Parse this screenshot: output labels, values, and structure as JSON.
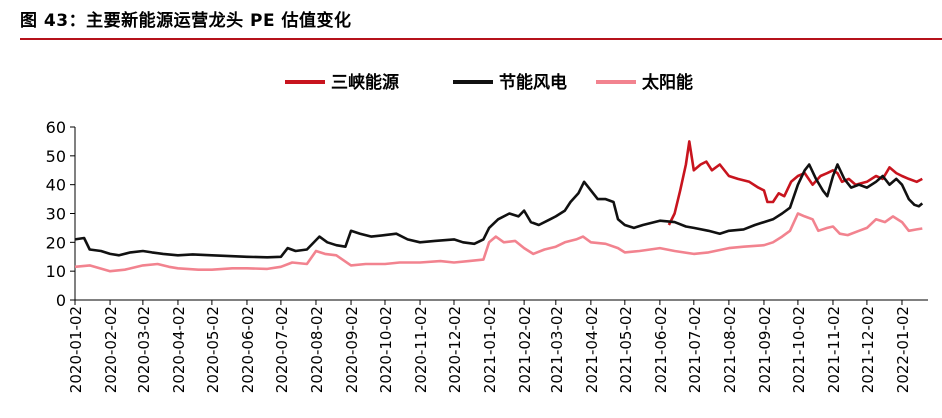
{
  "figure_title": "图 43：主要新能源运营龙头 PE 估值变化",
  "colors": {
    "rule": "#b5121b"
  },
  "chart_data": {
    "type": "line",
    "title": "图 43：主要新能源运营龙头 PE 估值变化",
    "xlabel": "",
    "ylabel": "",
    "ylim": [
      0,
      60
    ],
    "yticks": [
      0,
      10,
      20,
      30,
      40,
      50,
      60
    ],
    "grid": false,
    "legend": "top-center",
    "xticks": [
      "2020-01-02",
      "2020-02-02",
      "2020-03-02",
      "2020-04-02",
      "2020-05-02",
      "2020-06-02",
      "2020-07-02",
      "2020-08-02",
      "2020-09-02",
      "2020-10-02",
      "2020-11-02",
      "2020-12-02",
      "2021-01-02",
      "2021-02-02",
      "2021-03-02",
      "2021-04-02",
      "2021-05-02",
      "2021-06-02",
      "2021-07-02",
      "2021-08-02",
      "2021-09-02",
      "2021-10-02",
      "2021-11-02",
      "2021-12-02",
      "2022-01-02"
    ],
    "series": [
      {
        "name": "三峡能源",
        "color": "#c8141e",
        "points": [
          [
            "2021-06-10",
            26
          ],
          [
            "2021-06-15",
            30
          ],
          [
            "2021-06-20",
            38
          ],
          [
            "2021-06-25",
            47
          ],
          [
            "2021-06-28",
            55
          ],
          [
            "2021-07-02",
            45
          ],
          [
            "2021-07-08",
            47
          ],
          [
            "2021-07-13",
            48
          ],
          [
            "2021-07-18",
            45
          ],
          [
            "2021-07-25",
            47
          ],
          [
            "2021-08-02",
            43
          ],
          [
            "2021-08-10",
            42
          ],
          [
            "2021-08-20",
            41
          ],
          [
            "2021-08-28",
            39
          ],
          [
            "2021-09-02",
            38
          ],
          [
            "2021-09-05",
            34
          ],
          [
            "2021-09-10",
            34
          ],
          [
            "2021-09-15",
            37
          ],
          [
            "2021-09-20",
            36
          ],
          [
            "2021-09-26",
            41
          ],
          [
            "2021-10-02",
            43
          ],
          [
            "2021-10-08",
            44
          ],
          [
            "2021-10-15",
            40
          ],
          [
            "2021-10-22",
            43
          ],
          [
            "2021-10-28",
            44
          ],
          [
            "2021-11-02",
            45
          ],
          [
            "2021-11-06",
            44
          ],
          [
            "2021-11-10",
            41
          ],
          [
            "2021-11-16",
            42
          ],
          [
            "2021-11-22",
            40
          ],
          [
            "2021-12-02",
            41
          ],
          [
            "2021-12-10",
            43
          ],
          [
            "2021-12-16",
            42
          ],
          [
            "2021-12-22",
            46
          ],
          [
            "2021-12-28",
            44
          ],
          [
            "2022-01-02",
            43
          ],
          [
            "2022-01-08",
            42
          ],
          [
            "2022-01-15",
            41
          ],
          [
            "2022-01-20",
            42
          ]
        ]
      },
      {
        "name": "节能风电",
        "color": "#111111",
        "points": [
          [
            "2020-01-02",
            21
          ],
          [
            "2020-01-10",
            21.5
          ],
          [
            "2020-01-15",
            17.5
          ],
          [
            "2020-01-25",
            17
          ],
          [
            "2020-02-02",
            16
          ],
          [
            "2020-02-10",
            15.5
          ],
          [
            "2020-02-20",
            16.5
          ],
          [
            "2020-03-02",
            17
          ],
          [
            "2020-03-10",
            16.5
          ],
          [
            "2020-03-20",
            16
          ],
          [
            "2020-04-02",
            15.5
          ],
          [
            "2020-04-15",
            15.8
          ],
          [
            "2020-05-02",
            15.5
          ],
          [
            "2020-05-15",
            15.3
          ],
          [
            "2020-06-02",
            15
          ],
          [
            "2020-06-20",
            14.8
          ],
          [
            "2020-07-02",
            15
          ],
          [
            "2020-07-08",
            18
          ],
          [
            "2020-07-15",
            17
          ],
          [
            "2020-07-25",
            17.5
          ],
          [
            "2020-08-05",
            22
          ],
          [
            "2020-08-12",
            20
          ],
          [
            "2020-08-20",
            19
          ],
          [
            "2020-08-28",
            18.5
          ],
          [
            "2020-09-02",
            24
          ],
          [
            "2020-09-10",
            23
          ],
          [
            "2020-09-20",
            22
          ],
          [
            "2020-10-02",
            22.5
          ],
          [
            "2020-10-12",
            23
          ],
          [
            "2020-10-22",
            21
          ],
          [
            "2020-11-02",
            20
          ],
          [
            "2020-11-15",
            20.5
          ],
          [
            "2020-12-02",
            21
          ],
          [
            "2020-12-10",
            20
          ],
          [
            "2020-12-20",
            19.5
          ],
          [
            "2020-12-28",
            21
          ],
          [
            "2021-01-02",
            25
          ],
          [
            "2021-01-10",
            28
          ],
          [
            "2021-01-20",
            30
          ],
          [
            "2021-01-28",
            29
          ],
          [
            "2021-02-02",
            31
          ],
          [
            "2021-02-08",
            27
          ],
          [
            "2021-02-15",
            26
          ],
          [
            "2021-02-25",
            28
          ],
          [
            "2021-03-02",
            29
          ],
          [
            "2021-03-10",
            31
          ],
          [
            "2021-03-15",
            34
          ],
          [
            "2021-03-22",
            37
          ],
          [
            "2021-03-27",
            41
          ],
          [
            "2021-04-02",
            38
          ],
          [
            "2021-04-08",
            35
          ],
          [
            "2021-04-15",
            35
          ],
          [
            "2021-04-22",
            34
          ],
          [
            "2021-04-26",
            28
          ],
          [
            "2021-05-02",
            26
          ],
          [
            "2021-05-10",
            25
          ],
          [
            "2021-05-18",
            26
          ],
          [
            "2021-06-02",
            27.5
          ],
          [
            "2021-06-15",
            27
          ],
          [
            "2021-06-25",
            25.5
          ],
          [
            "2021-07-02",
            25
          ],
          [
            "2021-07-15",
            24
          ],
          [
            "2021-07-25",
            23
          ],
          [
            "2021-08-02",
            24
          ],
          [
            "2021-08-15",
            24.5
          ],
          [
            "2021-08-25",
            26
          ],
          [
            "2021-09-02",
            27
          ],
          [
            "2021-09-10",
            28
          ],
          [
            "2021-09-18",
            30
          ],
          [
            "2021-09-25",
            32
          ],
          [
            "2021-10-02",
            40
          ],
          [
            "2021-10-08",
            45
          ],
          [
            "2021-10-12",
            47
          ],
          [
            "2021-10-18",
            42
          ],
          [
            "2021-10-24",
            38
          ],
          [
            "2021-10-28",
            36
          ],
          [
            "2021-11-02",
            43
          ],
          [
            "2021-11-06",
            47
          ],
          [
            "2021-11-12",
            42
          ],
          [
            "2021-11-18",
            39
          ],
          [
            "2021-11-25",
            40
          ],
          [
            "2021-12-02",
            39
          ],
          [
            "2021-12-10",
            41
          ],
          [
            "2021-12-16",
            43
          ],
          [
            "2021-12-22",
            40
          ],
          [
            "2021-12-28",
            42
          ],
          [
            "2022-01-02",
            40
          ],
          [
            "2022-01-08",
            35
          ],
          [
            "2022-01-13",
            33
          ],
          [
            "2022-01-17",
            32.5
          ],
          [
            "2022-01-20",
            33.5
          ]
        ]
      },
      {
        "name": "太阳能",
        "color": "#f2838f",
        "points": [
          [
            "2020-01-02",
            11.5
          ],
          [
            "2020-01-15",
            12
          ],
          [
            "2020-02-02",
            10
          ],
          [
            "2020-02-15",
            10.5
          ],
          [
            "2020-03-02",
            12
          ],
          [
            "2020-03-15",
            12.5
          ],
          [
            "2020-03-25",
            11.5
          ],
          [
            "2020-04-02",
            11
          ],
          [
            "2020-04-20",
            10.5
          ],
          [
            "2020-05-02",
            10.5
          ],
          [
            "2020-05-20",
            11
          ],
          [
            "2020-06-02",
            11
          ],
          [
            "2020-06-20",
            10.8
          ],
          [
            "2020-07-02",
            11.5
          ],
          [
            "2020-07-12",
            13
          ],
          [
            "2020-07-25",
            12.5
          ],
          [
            "2020-08-02",
            17
          ],
          [
            "2020-08-10",
            16
          ],
          [
            "2020-08-20",
            15.5
          ],
          [
            "2020-09-02",
            12
          ],
          [
            "2020-09-15",
            12.5
          ],
          [
            "2020-10-02",
            12.5
          ],
          [
            "2020-10-15",
            13
          ],
          [
            "2020-11-02",
            13
          ],
          [
            "2020-11-20",
            13.5
          ],
          [
            "2020-12-02",
            13
          ],
          [
            "2020-12-15",
            13.5
          ],
          [
            "2020-12-28",
            14
          ],
          [
            "2021-01-02",
            20
          ],
          [
            "2021-01-08",
            22
          ],
          [
            "2021-01-15",
            20
          ],
          [
            "2021-01-25",
            20.5
          ],
          [
            "2021-02-02",
            18
          ],
          [
            "2021-02-10",
            16
          ],
          [
            "2021-02-20",
            17.5
          ],
          [
            "2021-03-02",
            18.5
          ],
          [
            "2021-03-10",
            20
          ],
          [
            "2021-03-20",
            21
          ],
          [
            "2021-03-26",
            22
          ],
          [
            "2021-04-02",
            20
          ],
          [
            "2021-04-15",
            19.5
          ],
          [
            "2021-04-26",
            18
          ],
          [
            "2021-05-02",
            16.5
          ],
          [
            "2021-05-15",
            17
          ],
          [
            "2021-06-02",
            18
          ],
          [
            "2021-06-15",
            17
          ],
          [
            "2021-07-02",
            16
          ],
          [
            "2021-07-15",
            16.5
          ],
          [
            "2021-08-02",
            18
          ],
          [
            "2021-08-15",
            18.5
          ],
          [
            "2021-09-02",
            19
          ],
          [
            "2021-09-10",
            20
          ],
          [
            "2021-09-18",
            22
          ],
          [
            "2021-09-25",
            24
          ],
          [
            "2021-10-02",
            30
          ],
          [
            "2021-10-08",
            29
          ],
          [
            "2021-10-15",
            28
          ],
          [
            "2021-10-20",
            24
          ],
          [
            "2021-10-28",
            25
          ],
          [
            "2021-11-02",
            25.5
          ],
          [
            "2021-11-08",
            23
          ],
          [
            "2021-11-15",
            22.5
          ],
          [
            "2021-11-25",
            24
          ],
          [
            "2021-12-02",
            25
          ],
          [
            "2021-12-10",
            28
          ],
          [
            "2021-12-18",
            27
          ],
          [
            "2021-12-25",
            29
          ],
          [
            "2022-01-02",
            27
          ],
          [
            "2022-01-08",
            24
          ],
          [
            "2022-01-15",
            24.5
          ],
          [
            "2022-01-20",
            24.8
          ]
        ]
      }
    ]
  }
}
